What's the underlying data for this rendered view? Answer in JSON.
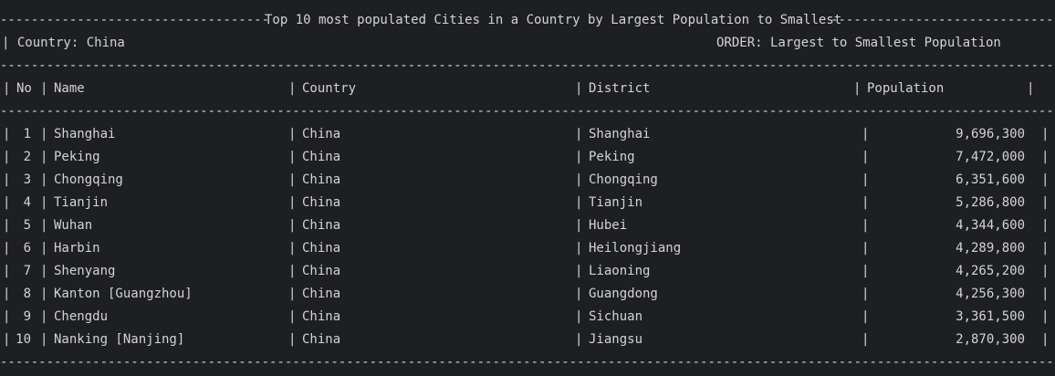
{
  "header": {
    "title": "Top 10 most populated Cities in a Country by Largest Population to Smallest",
    "country_label": "| Country: China",
    "order_label": "ORDER: Largest to Smallest Population"
  },
  "columns": {
    "no": "No",
    "name": "Name",
    "country": "Country",
    "district": "District",
    "population": "Population"
  },
  "rows": [
    {
      "no": "1",
      "name": "Shanghai",
      "country": "China",
      "district": "Shanghai",
      "population": "9,696,300"
    },
    {
      "no": "2",
      "name": "Peking",
      "country": "China",
      "district": "Peking",
      "population": "7,472,000"
    },
    {
      "no": "3",
      "name": "Chongqing",
      "country": "China",
      "district": "Chongqing",
      "population": "6,351,600"
    },
    {
      "no": "4",
      "name": "Tianjin",
      "country": "China",
      "district": "Tianjin",
      "population": "5,286,800"
    },
    {
      "no": "5",
      "name": "Wuhan",
      "country": "China",
      "district": "Hubei",
      "population": "4,344,600"
    },
    {
      "no": "6",
      "name": "Harbin",
      "country": "China",
      "district": "Heilongjiang",
      "population": "4,289,800"
    },
    {
      "no": "7",
      "name": "Shenyang",
      "country": "China",
      "district": "Liaoning",
      "population": "4,265,200"
    },
    {
      "no": "8",
      "name": "Kanton [Guangzhou]",
      "country": "China",
      "district": "Guangdong",
      "population": "4,256,300"
    },
    {
      "no": "9",
      "name": "Chengdu",
      "country": "China",
      "district": "Sichuan",
      "population": "3,361,500"
    },
    {
      "no": "10",
      "name": "Nanking [Nanjing]",
      "country": "China",
      "district": "Jiangsu",
      "population": "2,870,300"
    }
  ]
}
